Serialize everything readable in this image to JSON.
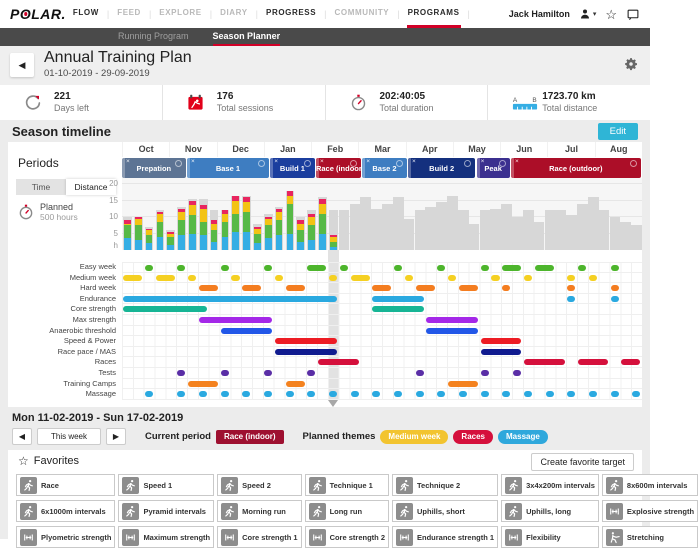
{
  "brand": {
    "logo_text": "POLAR",
    "logo_suffix": "."
  },
  "nav": {
    "items": [
      {
        "label": "FLOW",
        "style": "dark",
        "active": false
      },
      {
        "label": "FEED",
        "style": "gray",
        "active": false
      },
      {
        "label": "EXPLORE",
        "style": "gray",
        "active": false
      },
      {
        "label": "DIARY",
        "style": "gray",
        "active": false
      },
      {
        "label": "PROGRESS",
        "style": "dark",
        "active": false
      },
      {
        "label": "COMMUNITY",
        "style": "gray",
        "active": false
      },
      {
        "label": "PROGRAMS",
        "style": "dark",
        "active": true
      }
    ],
    "user_name": "Jack Hamilton"
  },
  "subnav": {
    "items": [
      {
        "label": "Running Program",
        "active": false
      },
      {
        "label": "Season Planner",
        "active": true
      }
    ]
  },
  "header": {
    "back_glyph": "◀",
    "title": "Annual Training Plan",
    "date_range": "01-10-2019 - 29-09-2019"
  },
  "stats": [
    {
      "icon": "days-left-icon",
      "value": "221",
      "label": "Days left"
    },
    {
      "icon": "sessions-icon",
      "value": "176",
      "label": "Total sessions"
    },
    {
      "icon": "duration-icon",
      "value": "202:40:05",
      "label": "Total duration"
    },
    {
      "icon": "distance-icon",
      "value": "1723.70 km",
      "label": "Total distance"
    }
  ],
  "season": {
    "title": "Season timeline",
    "edit_label": "Edit",
    "edit_color": "#2fb5d6"
  },
  "periods_panel": {
    "title": "Periods",
    "tabs": [
      {
        "label": "Time",
        "active": false
      },
      {
        "label": "Distance",
        "active": true
      }
    ],
    "planned_label": "Planned",
    "planned_value": "500 hours"
  },
  "months": [
    "Oct",
    "Nov",
    "Dec",
    "Jan",
    "Feb",
    "Mar",
    "Apr",
    "May",
    "Jun",
    "Jul",
    "Aug"
  ],
  "periods": [
    {
      "label": "Prepation",
      "start_pct": 0,
      "end_pct": 12.5,
      "color": "#5d7494"
    },
    {
      "label": "Base 1",
      "start_pct": 12.5,
      "end_pct": 28.5,
      "color": "#3e7dc1"
    },
    {
      "label": "Build 1",
      "start_pct": 28.5,
      "end_pct": 37.3,
      "color": "#1b3e9e"
    },
    {
      "label": "Race (indoor)",
      "start_pct": 37.3,
      "end_pct": 46.2,
      "color": "#ac0e28"
    },
    {
      "label": "Base 2",
      "start_pct": 46.2,
      "end_pct": 55.0,
      "color": "#3e7dc1"
    },
    {
      "label": "Build 2",
      "start_pct": 55.0,
      "end_pct": 68.2,
      "color": "#14307e"
    },
    {
      "label": "Peak",
      "start_pct": 68.2,
      "end_pct": 74.8,
      "color": "#3b2f8f"
    },
    {
      "label": "Race (outdoor)",
      "start_pct": 74.8,
      "end_pct": 100,
      "color": "#ac0e28"
    }
  ],
  "chart_data": {
    "type": "bar",
    "stacked": true,
    "unit": "h",
    "ylim": [
      0,
      20
    ],
    "yticks": [
      5,
      10,
      15,
      20
    ],
    "ylabel_bottom": "h",
    "weeks_total": 48,
    "current_week_index": 19,
    "segment_names": [
      "easy-blue",
      "steady-green",
      "hard-yellow",
      "max-red"
    ],
    "segment_colors": [
      "#35aee4",
      "#57b947",
      "#f3c314",
      "#e8255f"
    ],
    "planned_color": "#d7d7d7",
    "completed": [
      [
        3.5,
        4,
        0.5,
        1
      ],
      [
        3,
        4.5,
        2,
        0.5
      ],
      [
        2,
        2.5,
        1.5,
        0.5
      ],
      [
        4,
        4.5,
        2.5,
        0.5
      ],
      [
        1.5,
        2.5,
        1,
        0.5
      ],
      [
        4.5,
        4.5,
        2.5,
        1
      ],
      [
        5,
        5.5,
        3,
        1.5
      ],
      [
        4.5,
        4,
        4,
        1
      ],
      [
        2.5,
        3.5,
        2,
        1
      ],
      [
        4,
        4.5,
        2.5,
        1
      ],
      [
        5.5,
        5.5,
        4,
        1.5
      ],
      [
        5.5,
        6,
        3,
        1.5
      ],
      [
        2,
        3,
        1.5,
        0.5
      ],
      [
        3.5,
        4,
        2,
        0.5
      ],
      [
        4.5,
        4.5,
        2.5,
        1
      ],
      [
        5,
        9,
        2.5,
        1.5
      ],
      [
        2.5,
        3.5,
        2,
        1
      ],
      [
        3,
        4.5,
        2.5,
        1
      ],
      [
        5,
        6,
        3,
        1.5
      ],
      [
        1,
        1.5,
        1.5,
        0.5
      ]
    ],
    "planned": [
      10,
      10,
      7,
      12,
      6,
      13,
      15.5,
      15.5,
      12,
      12,
      16.5,
      16.5,
      8,
      11,
      13,
      18,
      10,
      12,
      16,
      12,
      12,
      14,
      16,
      12.5,
      14,
      16,
      9.5,
      12,
      13,
      14.5,
      16.5,
      12,
      8,
      12,
      12.5,
      14,
      10,
      12,
      8.5,
      12,
      12,
      10.5,
      14,
      16,
      12,
      10,
      8.5,
      7.5
    ]
  },
  "gantt": {
    "rows": [
      {
        "label": "Easy week",
        "color": "#4db52c",
        "bars": [
          [
            2,
            2
          ],
          [
            5,
            5
          ],
          [
            9,
            9
          ],
          [
            13,
            13
          ],
          [
            17,
            18
          ],
          [
            20,
            20
          ],
          [
            25,
            25
          ],
          [
            29,
            29
          ],
          [
            33,
            33
          ],
          [
            35,
            36
          ],
          [
            38,
            39
          ],
          [
            42,
            42
          ],
          [
            45,
            45
          ]
        ]
      },
      {
        "label": "Medium week",
        "color": "#f5d022",
        "bars": [
          [
            0,
            1
          ],
          [
            3,
            4
          ],
          [
            6,
            6
          ],
          [
            10,
            10
          ],
          [
            14,
            14
          ],
          [
            19,
            19
          ],
          [
            21,
            22
          ],
          [
            26,
            26
          ],
          [
            30,
            30
          ],
          [
            34,
            34
          ],
          [
            37,
            37
          ],
          [
            41,
            41
          ],
          [
            43,
            43
          ]
        ]
      },
      {
        "label": "Hard week",
        "color": "#f47d20",
        "bars": [
          [
            7,
            8
          ],
          [
            11,
            12
          ],
          [
            15,
            16
          ],
          [
            23,
            24
          ],
          [
            27,
            28
          ],
          [
            31,
            32
          ],
          [
            35,
            35
          ],
          [
            41,
            41
          ],
          [
            45,
            45
          ]
        ]
      },
      {
        "label": "Endurance",
        "color": "#2aa9e0",
        "bars": [
          [
            0,
            19
          ],
          [
            23,
            27
          ],
          [
            41,
            41
          ],
          [
            45,
            45
          ]
        ]
      },
      {
        "label": "Core strength",
        "color": "#17b595",
        "bars": [
          [
            0,
            7
          ],
          [
            23,
            27
          ]
        ]
      },
      {
        "label": "Max strength",
        "color": "#a428e8",
        "bars": [
          [
            7,
            13
          ],
          [
            28,
            32
          ]
        ]
      },
      {
        "label": "Anaerobic threshold",
        "color": "#2257e8",
        "bars": [
          [
            9,
            13
          ],
          [
            28,
            32
          ]
        ]
      },
      {
        "label": "Speed & Power",
        "color": "#ed1c24",
        "bars": [
          [
            14,
            19
          ],
          [
            33,
            36
          ]
        ]
      },
      {
        "label": "Race pace / MAS",
        "color": "#101b8f",
        "bars": [
          [
            14,
            19
          ],
          [
            33,
            36
          ]
        ]
      },
      {
        "label": "Races",
        "color": "#d5103c",
        "bars": [
          [
            18,
            21
          ],
          [
            37,
            40
          ],
          [
            42,
            44
          ],
          [
            46,
            47
          ]
        ]
      },
      {
        "label": "Tests",
        "color": "#5a2ea6",
        "bars": [
          [
            5,
            5
          ],
          [
            9,
            9
          ],
          [
            13,
            13
          ],
          [
            17,
            17
          ],
          [
            27,
            27
          ],
          [
            33,
            33
          ],
          [
            36,
            36
          ]
        ]
      },
      {
        "label": "Training Camps",
        "color": "#f4821f",
        "bars": [
          [
            6,
            8
          ],
          [
            15,
            16
          ],
          [
            30,
            32
          ]
        ]
      },
      {
        "label": "Massage",
        "color": "#2aa9e0",
        "bars": [
          [
            2,
            2
          ],
          [
            5,
            5
          ],
          [
            7,
            7
          ],
          [
            9,
            9
          ],
          [
            11,
            11
          ],
          [
            13,
            13
          ],
          [
            15,
            15
          ],
          [
            17,
            17
          ],
          [
            19,
            19
          ],
          [
            21,
            21
          ],
          [
            23,
            23
          ],
          [
            25,
            25
          ],
          [
            27,
            27
          ],
          [
            29,
            29
          ],
          [
            31,
            31
          ],
          [
            33,
            33
          ],
          [
            35,
            35
          ],
          [
            37,
            37
          ],
          [
            39,
            39
          ],
          [
            41,
            41
          ],
          [
            43,
            43
          ],
          [
            45,
            45
          ],
          [
            47,
            47
          ]
        ]
      }
    ]
  },
  "week_section": {
    "title": "Mon 11-02-2019 - Sun 17-02-2019",
    "prev_glyph": "◀",
    "next_glyph": "▶",
    "this_week_label": "This week",
    "current_period_label": "Current period",
    "current_period_badge": {
      "label": "Race (indoor)",
      "color": "#9e1030"
    },
    "planned_themes_label": "Planned themes",
    "theme_badges": [
      {
        "label": "Medium week",
        "color": "#f2c430"
      },
      {
        "label": "Races",
        "color": "#d5103c"
      },
      {
        "label": "Massage",
        "color": "#2fa8dc"
      }
    ]
  },
  "favorites": {
    "title": "Favorites",
    "star_glyph": "☆",
    "create_label": "Create favorite target",
    "items": [
      {
        "label": "Race",
        "icon": "run"
      },
      {
        "label": "Speed 1",
        "icon": "run"
      },
      {
        "label": "Speed 2",
        "icon": "run"
      },
      {
        "label": "Technique 1",
        "icon": "run"
      },
      {
        "label": "Technique 2",
        "icon": "run"
      },
      {
        "label": "3x4x200m intervals",
        "icon": "run"
      },
      {
        "label": "8x600m intervals",
        "icon": "run"
      },
      {
        "label": "6x1000m intervals",
        "icon": "run"
      },
      {
        "label": "Pyramid intervals",
        "icon": "run"
      },
      {
        "label": "Morning run",
        "icon": "run"
      },
      {
        "label": "Long run",
        "icon": "run"
      },
      {
        "label": "Uphills, short",
        "icon": "run"
      },
      {
        "label": "Uphills, long",
        "icon": "run"
      },
      {
        "label": "Explosive strength",
        "icon": "strength"
      },
      {
        "label": "Plyometric strength",
        "icon": "strength"
      },
      {
        "label": "Maximum strength",
        "icon": "strength"
      },
      {
        "label": "Core strength 1",
        "icon": "strength"
      },
      {
        "label": "Core strength 2",
        "icon": "strength"
      },
      {
        "label": "Endurance strength 1",
        "icon": "strength"
      },
      {
        "label": "Flexibility",
        "icon": "strength"
      },
      {
        "label": "Stretching",
        "icon": "stretch"
      }
    ]
  }
}
